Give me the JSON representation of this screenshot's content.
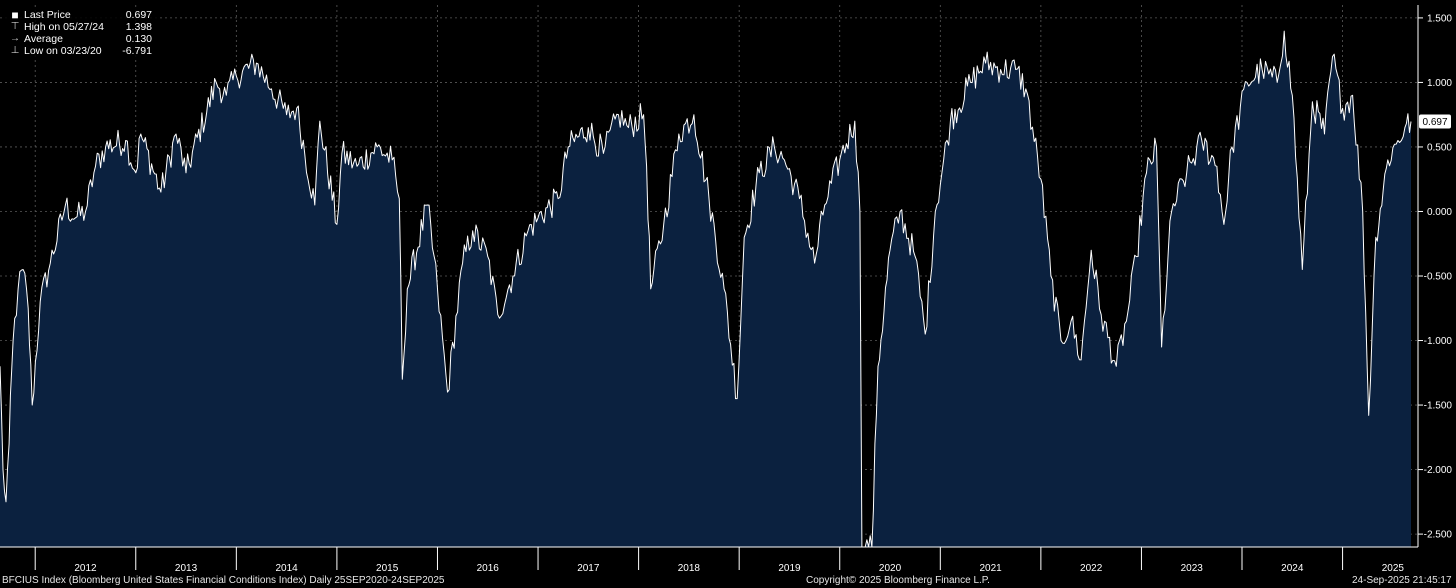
{
  "legend": {
    "rows": [
      {
        "glyph": "■",
        "label": "Last Price",
        "value": "0.697"
      },
      {
        "glyph": "⊤",
        "label": "High on 05/27/24",
        "value": "1.398"
      },
      {
        "glyph": "→",
        "label": "Average",
        "value": "0.130"
      },
      {
        "glyph": "⊥",
        "label": "Low on 03/23/20",
        "value": "-6.791"
      }
    ]
  },
  "footer": {
    "left": "BFCIUS Index (Bloomberg United States Financial Conditions Index)  Daily 25SEP2020-24SEP2025",
    "center": "Copyright© 2025 Bloomberg Finance L.P.",
    "right": "24-Sep-2025 21:45:17"
  },
  "colors": {
    "background": "#000000",
    "area_fill": "#0b213f",
    "line": "#ffffff",
    "grid": "#5a5a5a"
  },
  "chart_data": {
    "type": "area",
    "title": "",
    "xlabel": "",
    "ylabel": "",
    "grid": true,
    "legend_position": "top-left",
    "x_tick_labels": [
      "2012",
      "2013",
      "2014",
      "2015",
      "2016",
      "2017",
      "2018",
      "2019",
      "2020",
      "2021",
      "2022",
      "2023",
      "2024",
      "2025"
    ],
    "y_ticks": [
      1.5,
      1.0,
      0.5,
      0.0,
      -0.5,
      -1.0,
      -1.5,
      -2.0,
      -2.5
    ],
    "y_tick_labels": [
      "1.500",
      "1.000",
      "0.500",
      "0.000",
      "-0.500",
      "-1.000",
      "-1.500",
      "-2.000",
      "-2.500"
    ],
    "xlim": [
      2011.65,
      2025.75
    ],
    "ylim": [
      -2.6,
      1.6
    ],
    "last_value_label": "0.697",
    "series": [
      {
        "values": [
          {
            "x": 2011.65,
            "y": -1.2
          },
          {
            "x": 2011.68,
            "y": -2.0
          },
          {
            "x": 2011.71,
            "y": -2.25
          },
          {
            "x": 2011.74,
            "y": -1.8
          },
          {
            "x": 2011.78,
            "y": -1.0
          },
          {
            "x": 2011.83,
            "y": -0.6
          },
          {
            "x": 2011.88,
            "y": -0.45
          },
          {
            "x": 2011.93,
            "y": -0.75
          },
          {
            "x": 2011.97,
            "y": -1.5
          },
          {
            "x": 2012.05,
            "y": -0.7
          },
          {
            "x": 2012.15,
            "y": -0.4
          },
          {
            "x": 2012.3,
            "y": 0.05
          },
          {
            "x": 2012.4,
            "y": -0.05
          },
          {
            "x": 2012.5,
            "y": 0.0
          },
          {
            "x": 2012.6,
            "y": 0.35
          },
          {
            "x": 2012.7,
            "y": 0.5
          },
          {
            "x": 2012.9,
            "y": 0.55
          },
          {
            "x": 2013.0,
            "y": 0.3
          },
          {
            "x": 2013.05,
            "y": 0.6
          },
          {
            "x": 2013.25,
            "y": 0.15
          },
          {
            "x": 2013.4,
            "y": 0.6
          },
          {
            "x": 2013.5,
            "y": 0.3
          },
          {
            "x": 2013.8,
            "y": 1.0
          },
          {
            "x": 2013.9,
            "y": 0.9
          },
          {
            "x": 2014.0,
            "y": 1.05
          },
          {
            "x": 2014.2,
            "y": 1.15
          },
          {
            "x": 2014.35,
            "y": 0.95
          },
          {
            "x": 2014.5,
            "y": 0.75
          },
          {
            "x": 2014.6,
            "y": 0.8
          },
          {
            "x": 2014.78,
            "y": 0.05
          },
          {
            "x": 2014.83,
            "y": 0.7
          },
          {
            "x": 2015.0,
            "y": -0.1
          },
          {
            "x": 2015.05,
            "y": 0.45
          },
          {
            "x": 2015.2,
            "y": 0.35
          },
          {
            "x": 2015.4,
            "y": 0.5
          },
          {
            "x": 2015.55,
            "y": 0.4
          },
          {
            "x": 2015.62,
            "y": 0.1
          },
          {
            "x": 2015.65,
            "y": -1.3
          },
          {
            "x": 2015.7,
            "y": -0.6
          },
          {
            "x": 2015.9,
            "y": 0.05
          },
          {
            "x": 2016.0,
            "y": -0.6
          },
          {
            "x": 2016.1,
            "y": -1.4
          },
          {
            "x": 2016.25,
            "y": -0.4
          },
          {
            "x": 2016.35,
            "y": -0.15
          },
          {
            "x": 2016.5,
            "y": -0.35
          },
          {
            "x": 2016.6,
            "y": -0.8
          },
          {
            "x": 2016.75,
            "y": -0.5
          },
          {
            "x": 2016.9,
            "y": -0.15
          },
          {
            "x": 2017.0,
            "y": -0.05
          },
          {
            "x": 2017.2,
            "y": 0.1
          },
          {
            "x": 2017.3,
            "y": 0.5
          },
          {
            "x": 2017.5,
            "y": 0.65
          },
          {
            "x": 2017.65,
            "y": 0.45
          },
          {
            "x": 2017.8,
            "y": 0.75
          },
          {
            "x": 2017.9,
            "y": 0.65
          },
          {
            "x": 2018.05,
            "y": 0.75
          },
          {
            "x": 2018.08,
            "y": 0.35
          },
          {
            "x": 2018.12,
            "y": -0.6
          },
          {
            "x": 2018.25,
            "y": -0.1
          },
          {
            "x": 2018.4,
            "y": 0.6
          },
          {
            "x": 2018.55,
            "y": 0.75
          },
          {
            "x": 2018.7,
            "y": 0.1
          },
          {
            "x": 2018.85,
            "y": -0.6
          },
          {
            "x": 2018.98,
            "y": -1.45
          },
          {
            "x": 2019.05,
            "y": -0.2
          },
          {
            "x": 2019.2,
            "y": 0.3
          },
          {
            "x": 2019.35,
            "y": 0.5
          },
          {
            "x": 2019.45,
            "y": 0.4
          },
          {
            "x": 2019.6,
            "y": 0.1
          },
          {
            "x": 2019.75,
            "y": -0.4
          },
          {
            "x": 2019.85,
            "y": 0.05
          },
          {
            "x": 2020.0,
            "y": 0.4
          },
          {
            "x": 2020.15,
            "y": 0.7
          },
          {
            "x": 2020.2,
            "y": 0.0
          },
          {
            "x": 2020.22,
            "y": -2.6
          },
          {
            "x": 2020.32,
            "y": -2.6
          },
          {
            "x": 2020.38,
            "y": -1.2
          },
          {
            "x": 2020.5,
            "y": -0.3
          },
          {
            "x": 2020.6,
            "y": 0.0
          },
          {
            "x": 2020.75,
            "y": -0.35
          },
          {
            "x": 2020.85,
            "y": -0.95
          },
          {
            "x": 2020.95,
            "y": 0.0
          },
          {
            "x": 2021.1,
            "y": 0.7
          },
          {
            "x": 2021.3,
            "y": 1.0
          },
          {
            "x": 2021.45,
            "y": 1.15
          },
          {
            "x": 2021.6,
            "y": 1.1
          },
          {
            "x": 2021.75,
            "y": 1.1
          },
          {
            "x": 2021.85,
            "y": 0.95
          },
          {
            "x": 2022.0,
            "y": 0.25
          },
          {
            "x": 2022.1,
            "y": -0.5
          },
          {
            "x": 2022.2,
            "y": -1.0
          },
          {
            "x": 2022.3,
            "y": -0.85
          },
          {
            "x": 2022.4,
            "y": -1.15
          },
          {
            "x": 2022.5,
            "y": -0.3
          },
          {
            "x": 2022.6,
            "y": -0.8
          },
          {
            "x": 2022.75,
            "y": -1.2
          },
          {
            "x": 2022.85,
            "y": -0.85
          },
          {
            "x": 2022.95,
            "y": -0.35
          },
          {
            "x": 2023.05,
            "y": 0.3
          },
          {
            "x": 2023.15,
            "y": 0.5
          },
          {
            "x": 2023.2,
            "y": -1.05
          },
          {
            "x": 2023.3,
            "y": 0.0
          },
          {
            "x": 2023.45,
            "y": 0.3
          },
          {
            "x": 2023.6,
            "y": 0.55
          },
          {
            "x": 2023.75,
            "y": 0.35
          },
          {
            "x": 2023.82,
            "y": -0.1
          },
          {
            "x": 2023.9,
            "y": 0.5
          },
          {
            "x": 2024.05,
            "y": 1.0
          },
          {
            "x": 2024.2,
            "y": 1.1
          },
          {
            "x": 2024.35,
            "y": 1.0
          },
          {
            "x": 2024.42,
            "y": 1.398
          },
          {
            "x": 2024.5,
            "y": 0.9
          },
          {
            "x": 2024.6,
            "y": -0.45
          },
          {
            "x": 2024.7,
            "y": 0.85
          },
          {
            "x": 2024.82,
            "y": 0.6
          },
          {
            "x": 2024.9,
            "y": 1.2
          },
          {
            "x": 2025.0,
            "y": 0.8
          },
          {
            "x": 2025.1,
            "y": 0.9
          },
          {
            "x": 2025.2,
            "y": 0.0
          },
          {
            "x": 2025.26,
            "y": -1.58
          },
          {
            "x": 2025.33,
            "y": -0.2
          },
          {
            "x": 2025.45,
            "y": 0.4
          },
          {
            "x": 2025.55,
            "y": 0.55
          },
          {
            "x": 2025.62,
            "y": 0.65
          },
          {
            "x": 2025.68,
            "y": 0.697
          }
        ]
      }
    ]
  }
}
